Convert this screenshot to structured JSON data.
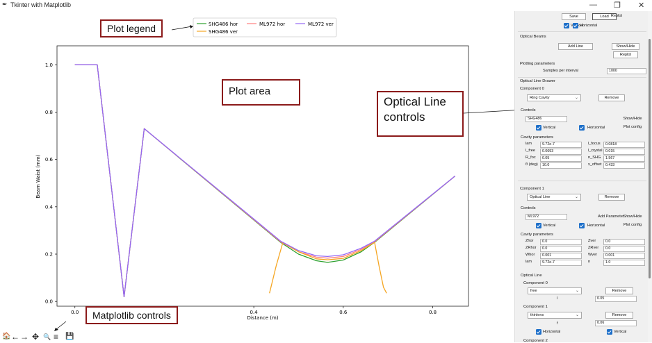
{
  "window": {
    "title": "Tkinter with Matplotlib",
    "feather_icon": "feather-icon",
    "minimize": "—",
    "maximize": "❐",
    "close": "✕"
  },
  "colors": {
    "shg_hor": "#2ca02c",
    "shg_ver": "#f5a623",
    "ml_hor": "#ff7f7f",
    "ml_ver": "#9467f5",
    "callout_border": "#8b1a1a",
    "checkbox": "#1d6fc9"
  },
  "annotations": {
    "plot_legend": "Plot legend",
    "plot_area": "Plot area",
    "optical_line_controls": "Optical Line controls",
    "matplotlib_controls": "Matplotlib controls"
  },
  "toolbar": {
    "home": "🏠",
    "back": "←",
    "forward": "→",
    "pan": "✥",
    "zoom": "🔍",
    "configure": "≡",
    "save": "💾"
  },
  "chart_data": {
    "type": "line",
    "xlabel": "Distance (m)",
    "ylabel": "Beam Waist (mm)",
    "xticks": [
      "0.0",
      "0.2",
      "0.4",
      "0.6",
      "0.8"
    ],
    "yticks": [
      "0.0",
      "0.2",
      "0.4",
      "0.6",
      "0.8",
      "1.0"
    ],
    "xlim": [
      -0.04,
      0.88
    ],
    "ylim": [
      -0.02,
      1.08
    ],
    "legend_position": "top-center",
    "series": [
      {
        "name": "SHG486 hor",
        "color": "#2ca02c",
        "x": [
          0.0,
          0.05,
          0.11,
          0.155,
          0.46,
          0.5,
          0.54,
          0.565,
          0.6,
          0.64,
          0.67,
          0.85
        ],
        "y": [
          1.0,
          1.0,
          0.02,
          0.73,
          0.25,
          0.2,
          0.172,
          0.165,
          0.175,
          0.21,
          0.25,
          0.53
        ]
      },
      {
        "name": "SHG486 ver",
        "color": "#f5a623",
        "x": [
          0.435,
          0.45,
          0.465,
          0.5,
          0.54,
          0.565,
          0.6,
          0.64,
          0.67,
          0.68,
          0.69,
          0.697
        ],
        "y": [
          0.035,
          0.15,
          0.25,
          0.21,
          0.18,
          0.176,
          0.182,
          0.215,
          0.25,
          0.15,
          0.06,
          0.035
        ]
      },
      {
        "name": "ML972 hor",
        "color": "#ff7f7f",
        "x": [
          0.0,
          0.05,
          0.11,
          0.155,
          0.46,
          0.5,
          0.54,
          0.565,
          0.6,
          0.64,
          0.67,
          0.85
        ],
        "y": [
          1.0,
          1.0,
          0.02,
          0.73,
          0.252,
          0.21,
          0.187,
          0.183,
          0.19,
          0.22,
          0.252,
          0.53
        ]
      },
      {
        "name": "ML972 ver",
        "color": "#9467f5",
        "x": [
          0.0,
          0.05,
          0.11,
          0.155,
          0.46,
          0.5,
          0.54,
          0.565,
          0.6,
          0.64,
          0.67,
          0.85
        ],
        "y": [
          1.0,
          1.0,
          0.02,
          0.73,
          0.255,
          0.215,
          0.193,
          0.19,
          0.197,
          0.225,
          0.255,
          0.53
        ]
      }
    ]
  },
  "panel": {
    "save": "Save",
    "load": "Load",
    "replot": "Replot",
    "vertical": "Vertical",
    "horizontal": "Horizontal",
    "optical_beams": "Optical Beams",
    "add_line": "Add Line",
    "show_hide": "Show/Hide",
    "replot2": "Replot",
    "plotting_parameters": "Plotting parameters",
    "samples_label": "Samples per interval",
    "samples_value": "1000",
    "optical_line_drawer": "Optical Line Drawer",
    "c0": {
      "title": "Component 0",
      "type": "Ring Cavity",
      "remove": "Remove",
      "controls": "Controls",
      "name": "SHG486",
      "show_hide": "Show/Hide",
      "vertical": "Vertical",
      "horizontal": "Horizontal",
      "plot_config": "Plot config",
      "cavity_parameters": "Cavity parameters",
      "params": [
        {
          "k": "lam",
          "v": "9.72e-7",
          "k2": "l_focus",
          "v2": "0.0818"
        },
        {
          "k": "l_free",
          "v": "0.0693",
          "k2": "l_crystal",
          "v2": "0.015"
        },
        {
          "k": "R_foc",
          "v": "0.05",
          "k2": "n_SHG",
          "v2": "1.567"
        },
        {
          "k": "θ (deg)",
          "v": "10.0",
          "k2": "x_offset",
          "v2": "0.433"
        }
      ]
    },
    "c1": {
      "title": "Component 1",
      "type": "Optical Line",
      "remove": "Remove",
      "controls": "Controls",
      "name": "ML972",
      "add_parameter": "Add Parameter",
      "show_hide": "Show/Hide",
      "vertical": "Vertical",
      "horizontal": "Horizontal",
      "plot_config": "Plot config",
      "cavity_parameters": "Cavity parameters",
      "params": [
        {
          "k": "Zhor",
          "v": "0.0",
          "k2": "Zver",
          "v2": "0.0"
        },
        {
          "k": "ZRhor",
          "v": "0.0",
          "k2": "ZRver",
          "v2": "0.0"
        },
        {
          "k": "Whor",
          "v": "0.001",
          "k2": "Wver",
          "v2": "0.001"
        },
        {
          "k": "lam",
          "v": "9.72e-7",
          "k2": "n",
          "v2": "1.0"
        }
      ],
      "optical_line": "Optical Line",
      "sub0": {
        "title": "Component 0",
        "type": "free",
        "remove": "Remove",
        "param": "l",
        "value": "0.05"
      },
      "sub1": {
        "title": "Component 1",
        "type": "thinlens",
        "remove": "Remove",
        "param": "f",
        "value": "0.06",
        "horizontal": "Horizontal",
        "vertical": "Vertical"
      },
      "sub2_title": "Component 2"
    }
  }
}
